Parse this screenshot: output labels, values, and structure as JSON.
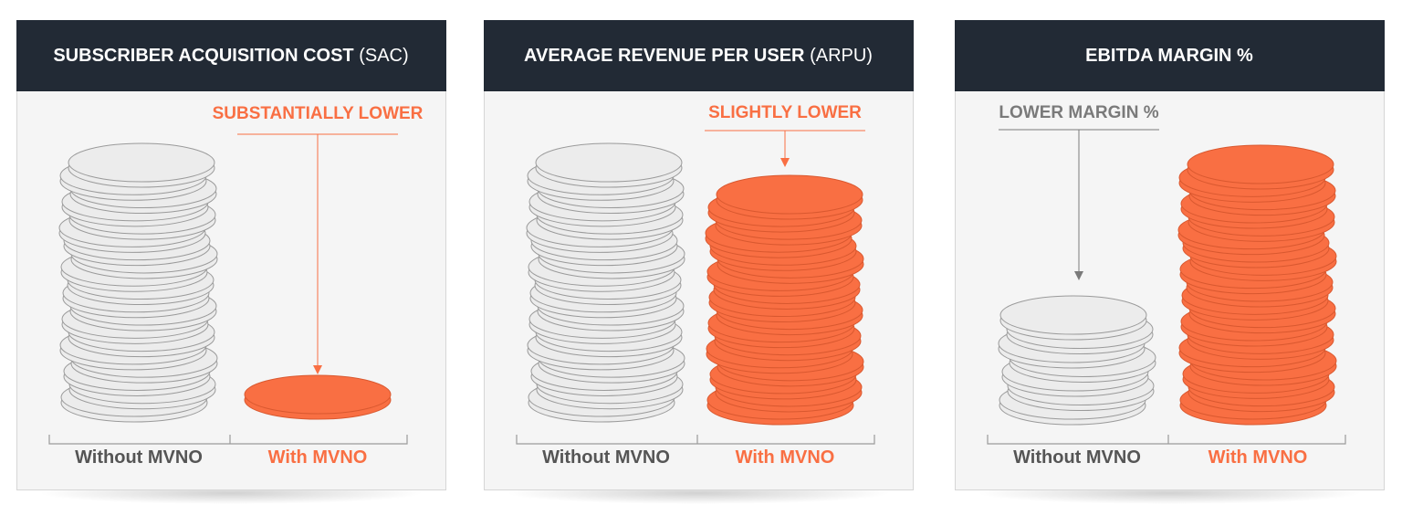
{
  "panels": [
    {
      "title": "SUBSCRIBER ACQUISITION COST",
      "title_suffix": "(SAC)",
      "annotation": "SUBSTANTIALLY LOWER",
      "left_label": "Without MVNO",
      "right_label": "With MVNO"
    },
    {
      "title": "AVERAGE REVENUE PER USER",
      "title_suffix": "(ARPU)",
      "annotation": "SLIGHTLY LOWER",
      "left_label": "Without MVNO",
      "right_label": "With MVNO"
    },
    {
      "title": "EBITDA MARGIN %",
      "annotation": "LOWER MARGIN %",
      "left_label": "Without MVNO",
      "right_label": "With MVNO"
    }
  ]
}
